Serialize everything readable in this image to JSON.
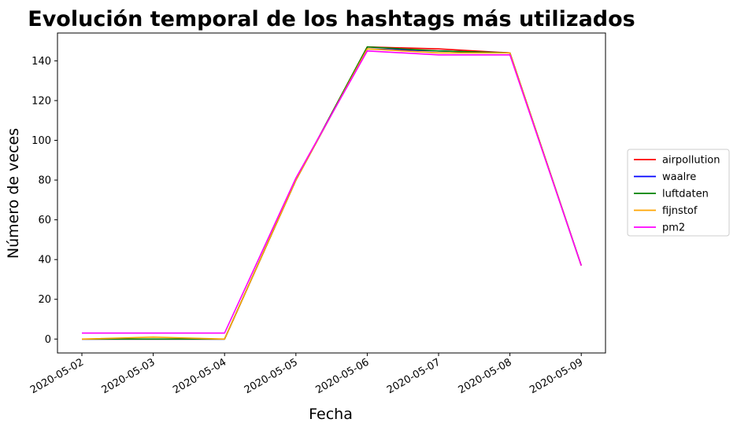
{
  "chart_data": {
    "type": "line",
    "title": "Evolución temporal de los hashtags más utilizados",
    "xlabel": "Fecha",
    "ylabel": "Número de veces",
    "x": [
      "2020-05-02",
      "2020-05-03",
      "2020-05-04",
      "2020-05-05",
      "2020-05-06",
      "2020-05-07",
      "2020-05-08",
      "2020-05-09"
    ],
    "ylim": [
      -7,
      154
    ],
    "yticks": [
      "0",
      "20",
      "40",
      "60",
      "80",
      "100",
      "120",
      "140"
    ],
    "grid": false,
    "legend_position": "right, outside plot",
    "series": [
      {
        "name": "airpollution",
        "color": "#ff0000",
        "values": [
          0,
          0,
          0,
          80,
          147,
          146,
          144,
          37
        ]
      },
      {
        "name": "waalre",
        "color": "#0000ff",
        "values": [
          0,
          0,
          0,
          80,
          146,
          145,
          144,
          37
        ]
      },
      {
        "name": "luftdaten",
        "color": "#008000",
        "values": [
          0,
          0,
          0,
          80,
          147,
          145,
          144,
          37
        ]
      },
      {
        "name": "fijnstof",
        "color": "#ffa500",
        "values": [
          0,
          1,
          0,
          80,
          146,
          144,
          144,
          37
        ]
      },
      {
        "name": "pm2",
        "color": "#ff00ff",
        "values": [
          3,
          3,
          3,
          81,
          145,
          143,
          143,
          37
        ]
      }
    ]
  }
}
